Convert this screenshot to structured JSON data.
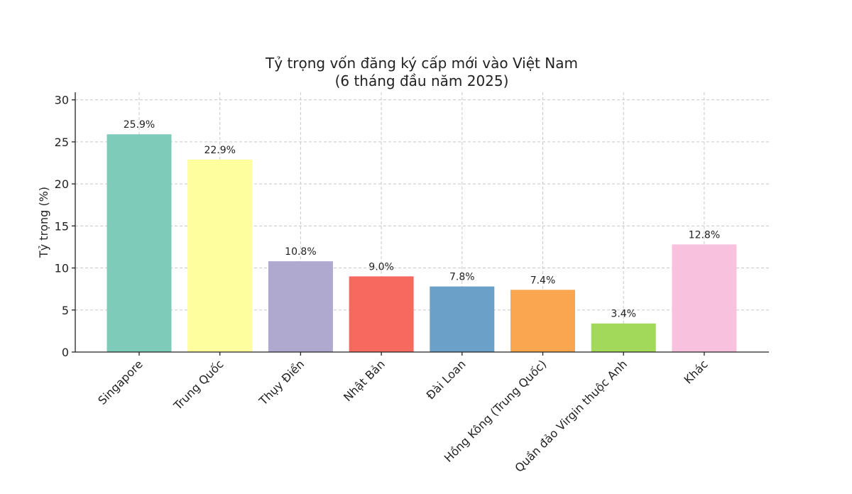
{
  "chart_data": {
    "type": "bar",
    "title": "Tỷ trọng vốn đăng ký cấp mới vào Việt Nam",
    "subtitle": "(6 tháng đầu năm 2025)",
    "ylabel": "Tỷ trọng (%)",
    "xlabel": "",
    "ylim": [
      0,
      30
    ],
    "yticks": [
      "0",
      "5",
      "10",
      "15",
      "20",
      "25",
      "30"
    ],
    "grid": true,
    "categories": [
      "Singapore",
      "Trung Quốc",
      "Thụy Điển",
      "Nhật Bản",
      "Đài Loan",
      "Hồng Kông (Trung Quốc)",
      "Quần đảo Virgin thuộc Anh",
      "Khác"
    ],
    "values": [
      25.9,
      22.9,
      10.8,
      9.0,
      7.8,
      7.4,
      3.4,
      12.8
    ],
    "value_labels": [
      "25.9%",
      "22.9%",
      "10.8%",
      "9.0%",
      "7.8%",
      "7.4%",
      "3.4%",
      "12.8%"
    ],
    "colors": [
      "#7fcbb9",
      "#fefe9f",
      "#afa9d0",
      "#f7685f",
      "#6ba0c8",
      "#faa54f",
      "#a3d95a",
      "#f8c1de"
    ]
  }
}
